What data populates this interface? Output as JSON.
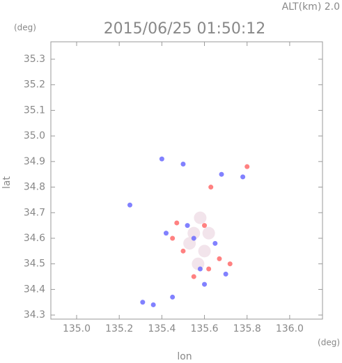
{
  "chart_data": {
    "type": "scatter",
    "title": "2015/06/25 01:50:12",
    "altitude": "ALT(km)  2.0",
    "y_unit": "(deg)",
    "x_unit": "(deg)",
    "x_label": "lon",
    "y_label": "lat",
    "xlim": [
      134.879,
      136.154
    ],
    "ylim": [
      34.284,
      35.368
    ],
    "xticks": [
      {
        "value": 135.0,
        "label": "135.0"
      },
      135.2,
      135.4,
      135.6,
      135.8,
      {
        "value": 136.0,
        "label": "136.0"
      }
    ],
    "yticks": [
      34.3,
      34.4,
      34.5,
      34.6,
      34.7,
      34.8,
      34.9,
      {
        "value": 35.0,
        "label": "35.0"
      },
      35.1,
      35.2,
      35.3
    ],
    "grid": false,
    "series": [
      {
        "color": "#f0dfe8",
        "x": [
          135.55,
          135.58,
          135.53,
          135.6,
          135.57,
          135.62
        ],
        "y": [
          34.62,
          34.68,
          34.58,
          34.55,
          34.5,
          34.62
        ]
      },
      {
        "color": "#6b6bff",
        "x": [
          135.31,
          135.36,
          135.45,
          135.55,
          135.52,
          135.58,
          135.7,
          135.68,
          135.78,
          135.4,
          135.5,
          135.25,
          135.6,
          135.65,
          135.42
        ],
        "y": [
          34.35,
          34.34,
          34.37,
          34.6,
          34.65,
          34.48,
          34.46,
          34.85,
          34.84,
          34.91,
          34.89,
          34.73,
          34.42,
          34.58,
          34.62
        ]
      },
      {
        "color": "#ff6b6b",
        "x": [
          135.55,
          135.62,
          135.72,
          135.5,
          135.6,
          135.47,
          135.8,
          135.63,
          135.45,
          135.67
        ],
        "y": [
          34.45,
          34.48,
          34.5,
          34.55,
          34.65,
          34.66,
          34.88,
          34.8,
          34.6,
          34.52
        ]
      }
    ]
  }
}
